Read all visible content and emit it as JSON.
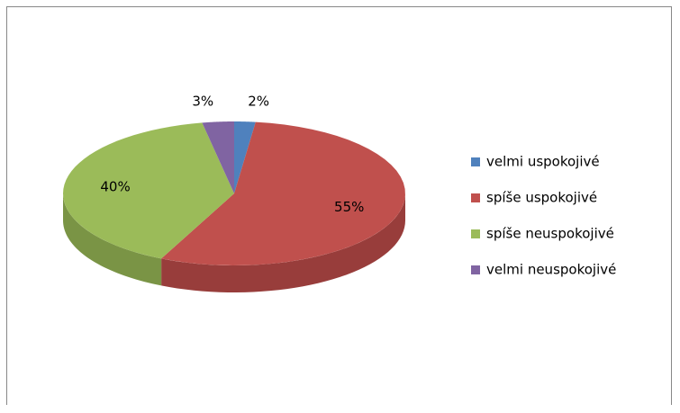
{
  "chart_data": {
    "type": "pie",
    "categories": [
      "velmi uspokojivé",
      "spíše uspokojivé",
      "spíše neuspokojivé",
      "velmi neuspokojivé"
    ],
    "values": [
      2,
      55,
      40,
      3
    ],
    "value_labels": [
      "2%",
      "55%",
      "40%",
      "3%"
    ],
    "colors": [
      "#4f81bd",
      "#c0504d",
      "#9bbb59",
      "#8064a2"
    ],
    "legend": "right"
  }
}
